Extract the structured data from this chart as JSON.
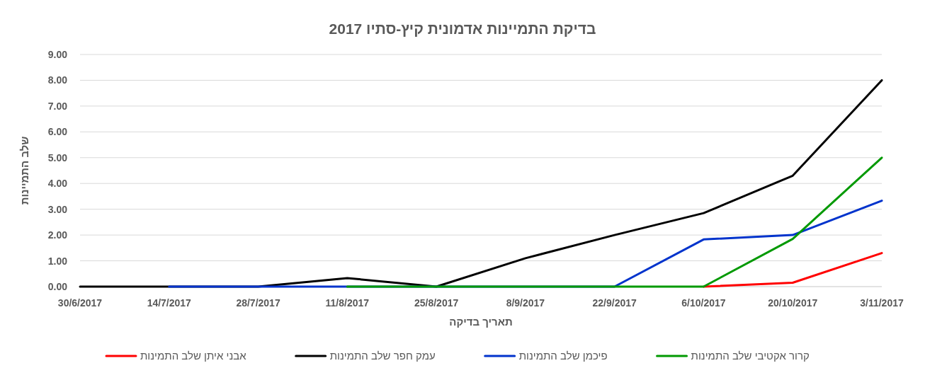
{
  "chart_data": {
    "type": "line",
    "title": "בדיקת התמיינות אדמונית קיץ-סתיו 2017",
    "xlabel": "תאריך בדיקה",
    "ylabel": "שלב התמיינות",
    "categories": [
      "30/6/2017",
      "14/7/2017",
      "28/7/2017",
      "11/8/2017",
      "25/8/2017",
      "8/9/2017",
      "22/9/2017",
      "6/10/2017",
      "20/10/2017",
      "3/11/2017"
    ],
    "ylim": [
      0,
      9
    ],
    "yticks": [
      {
        "value": 0,
        "label": "0.00"
      },
      {
        "value": 1,
        "label": "1.00"
      },
      {
        "value": 2,
        "label": "2.00"
      },
      {
        "value": 3,
        "label": "3.00"
      },
      {
        "value": 4,
        "label": "4.00"
      },
      {
        "value": 5,
        "label": "5.00"
      },
      {
        "value": 6,
        "label": "6.00"
      },
      {
        "value": 7,
        "label": "7.00"
      },
      {
        "value": 8,
        "label": "8.00"
      },
      {
        "value": 9,
        "label": "9.00"
      }
    ],
    "grid": "y",
    "legend": "bottom",
    "marker": "none",
    "series": [
      {
        "name": "אבני איתן שלב התמינות",
        "color": "#ff0000",
        "values": [
          null,
          null,
          null,
          null,
          null,
          null,
          null,
          0,
          0.15,
          1.3
        ]
      },
      {
        "name": "עמק חפר שלב התמינות",
        "color": "#000000",
        "values": [
          0,
          0,
          0,
          0.33,
          0,
          1.1,
          2.0,
          2.85,
          4.3,
          8.0
        ]
      },
      {
        "name": "פיכמן שלב התמינות",
        "color": "#0033cc",
        "values": [
          null,
          0,
          0,
          0,
          0,
          0,
          0,
          1.83,
          2.0,
          3.33
        ]
      },
      {
        "name": "קרור אקטיבי שלב התמינות",
        "color": "#009900",
        "values": [
          null,
          null,
          null,
          0,
          0,
          0,
          0,
          0,
          1.85,
          5.0
        ]
      }
    ]
  }
}
